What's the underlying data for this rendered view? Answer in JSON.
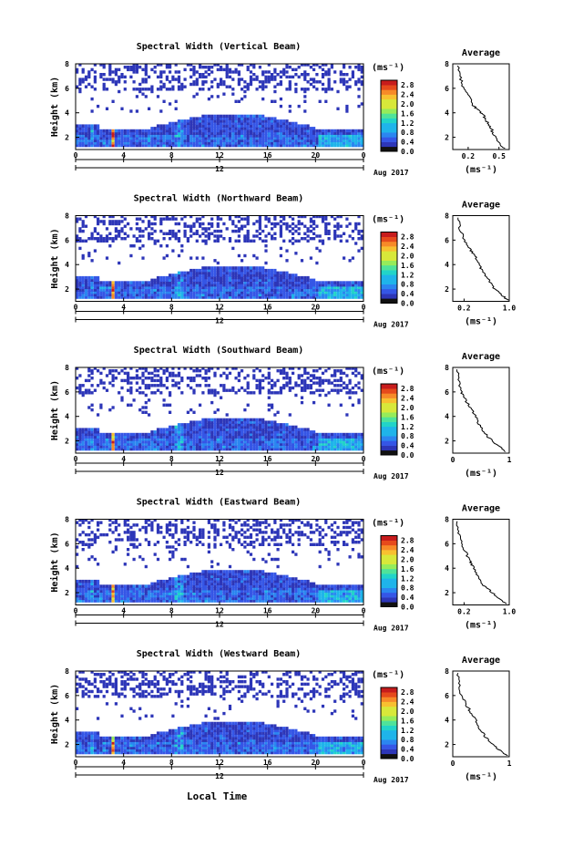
{
  "chart_data": [
    {
      "type": "heatmap",
      "title": "Spectral Width (Vertical Beam)",
      "ylabel": "Height (km)",
      "yticks": [
        "2",
        "4",
        "6",
        "8"
      ],
      "ylim": [
        1,
        8
      ],
      "xticks": [
        "0",
        "4",
        "8",
        "12",
        "16",
        "20",
        "0"
      ],
      "xlim": [
        0,
        24
      ],
      "date_label": "12",
      "month_label": "Aug 2017",
      "colorbar_unit": "(ms⁻¹)",
      "colorbar_ticks": [
        "0.0",
        "0.4",
        "0.8",
        "1.2",
        "1.6",
        "2.0",
        "2.4",
        "2.8"
      ],
      "colorbar_range": [
        0,
        3.0
      ],
      "avg_title": "Average",
      "avg_xlabel": "(ms⁻¹)",
      "avg_xticks": [
        "0.2",
        "0.5"
      ],
      "avg_xlim": [
        0.05,
        0.6
      ],
      "avg_yticks": [
        "2",
        "4",
        "6",
        "8"
      ],
      "avg_ylim": [
        1,
        8
      ],
      "avg_profile": {
        "x": [
          0.55,
          0.5,
          0.45,
          0.42,
          0.38,
          0.35,
          0.3,
          0.25,
          0.2,
          0.15,
          0.12,
          0.1
        ],
        "y": [
          1.1,
          1.5,
          2.2,
          2.8,
          3.3,
          3.8,
          4.2,
          4.6,
          5.5,
          6.2,
          7.0,
          8.0
        ]
      }
    },
    {
      "type": "heatmap",
      "title": "Spectral Width (Northward Beam)",
      "ylabel": "Height (km)",
      "yticks": [
        "2",
        "4",
        "6",
        "8"
      ],
      "ylim": [
        1,
        8
      ],
      "xticks": [
        "0",
        "4",
        "8",
        "12",
        "16",
        "20",
        "0"
      ],
      "xlim": [
        0,
        24
      ],
      "date_label": "12",
      "month_label": "Aug 2017",
      "colorbar_unit": "(ms⁻¹)",
      "colorbar_ticks": [
        "0.0",
        "0.4",
        "0.8",
        "1.2",
        "1.6",
        "2.0",
        "2.4",
        "2.8"
      ],
      "colorbar_range": [
        0,
        3.0
      ],
      "avg_title": "Average",
      "avg_xlabel": "(ms⁻¹)",
      "avg_xticks": [
        "0.2",
        "1.0"
      ],
      "avg_xlim": [
        0,
        1.0
      ],
      "avg_yticks": [
        "2",
        "4",
        "6",
        "8"
      ],
      "avg_ylim": [
        1,
        8
      ],
      "avg_profile": {
        "x": [
          0.98,
          0.85,
          0.7,
          0.6,
          0.5,
          0.45,
          0.38,
          0.3,
          0.2,
          0.12,
          0.1
        ],
        "y": [
          1.1,
          1.6,
          2.2,
          3.0,
          3.6,
          4.2,
          4.8,
          5.3,
          6.0,
          7.0,
          8.0
        ]
      }
    },
    {
      "type": "heatmap",
      "title": "Spectral Width (Southward Beam)",
      "ylabel": "Height (km)",
      "yticks": [
        "2",
        "4",
        "6",
        "8"
      ],
      "ylim": [
        1,
        8
      ],
      "xticks": [
        "0",
        "4",
        "8",
        "12",
        "16",
        "20",
        "0"
      ],
      "xlim": [
        0,
        24
      ],
      "date_label": "12",
      "month_label": "Aug 2017",
      "colorbar_unit": "(ms⁻¹)",
      "colorbar_ticks": [
        "0.0",
        "0.4",
        "0.8",
        "1.2",
        "1.6",
        "2.0",
        "2.4",
        "2.8"
      ],
      "colorbar_range": [
        0,
        3.0
      ],
      "avg_title": "Average",
      "avg_xlabel": "(ms⁻¹)",
      "avg_xticks": [
        "0",
        "1"
      ],
      "avg_xlim": [
        0,
        1.0
      ],
      "avg_yticks": [
        "2",
        "4",
        "6",
        "8"
      ],
      "avg_ylim": [
        1,
        8
      ],
      "avg_profile": {
        "x": [
          0.95,
          0.8,
          0.65,
          0.55,
          0.45,
          0.38,
          0.3,
          0.22,
          0.15,
          0.1,
          0.08
        ],
        "y": [
          1.1,
          1.6,
          2.2,
          2.8,
          3.5,
          4.2,
          4.8,
          5.4,
          6.0,
          7.0,
          8.0
        ]
      }
    },
    {
      "type": "heatmap",
      "title": "Spectral Width (Eastward Beam)",
      "ylabel": "Height (km)",
      "yticks": [
        "2",
        "4",
        "6",
        "8"
      ],
      "ylim": [
        1,
        8
      ],
      "xticks": [
        "0",
        "4",
        "8",
        "12",
        "16",
        "20",
        "0"
      ],
      "xlim": [
        0,
        24
      ],
      "date_label": "12",
      "month_label": "Aug 2017",
      "colorbar_unit": "(ms⁻¹)",
      "colorbar_ticks": [
        "0.0",
        "0.4",
        "0.8",
        "1.2",
        "1.6",
        "2.0",
        "2.4",
        "2.8"
      ],
      "colorbar_range": [
        0,
        3.0
      ],
      "avg_title": "Average",
      "avg_xlabel": "(ms⁻¹)",
      "avg_xticks": [
        "0.2",
        "1.0"
      ],
      "avg_xlim": [
        0,
        1.0
      ],
      "avg_yticks": [
        "2",
        "4",
        "6",
        "8"
      ],
      "avg_ylim": [
        1,
        8
      ],
      "avg_profile": {
        "x": [
          0.95,
          0.8,
          0.65,
          0.5,
          0.42,
          0.35,
          0.3,
          0.22,
          0.15,
          0.1,
          0.08
        ],
        "y": [
          1.1,
          1.6,
          2.2,
          2.8,
          3.5,
          4.2,
          4.6,
          5.4,
          6.2,
          7.0,
          8.0
        ]
      }
    },
    {
      "type": "heatmap",
      "title": "Spectral Width (Westward Beam)",
      "ylabel": "Height (km)",
      "yticks": [
        "2",
        "4",
        "6",
        "8"
      ],
      "ylim": [
        1,
        8
      ],
      "xticks": [
        "0",
        "4",
        "8",
        "12",
        "16",
        "20",
        "0"
      ],
      "xlim": [
        0,
        24
      ],
      "date_label": "12",
      "month_label": "Aug 2017",
      "colorbar_unit": "(ms⁻¹)",
      "colorbar_ticks": [
        "0.0",
        "0.4",
        "0.8",
        "1.2",
        "1.6",
        "2.0",
        "2.4",
        "2.8"
      ],
      "colorbar_range": [
        0,
        3.0
      ],
      "avg_title": "Average",
      "avg_xlabel": "(ms⁻¹)",
      "avg_xticks": [
        "0",
        "1"
      ],
      "avg_xlim": [
        0,
        1.0
      ],
      "avg_yticks": [
        "2",
        "4",
        "6",
        "8"
      ],
      "avg_ylim": [
        1,
        8
      ],
      "avg_profile": {
        "x": [
          0.98,
          0.8,
          0.65,
          0.55,
          0.45,
          0.38,
          0.3,
          0.22,
          0.15,
          0.1,
          0.08
        ],
        "y": [
          1.1,
          1.6,
          2.2,
          2.8,
          3.5,
          4.2,
          4.8,
          5.4,
          6.0,
          7.0,
          8.0
        ]
      }
    }
  ],
  "xlabel": "Local Time"
}
